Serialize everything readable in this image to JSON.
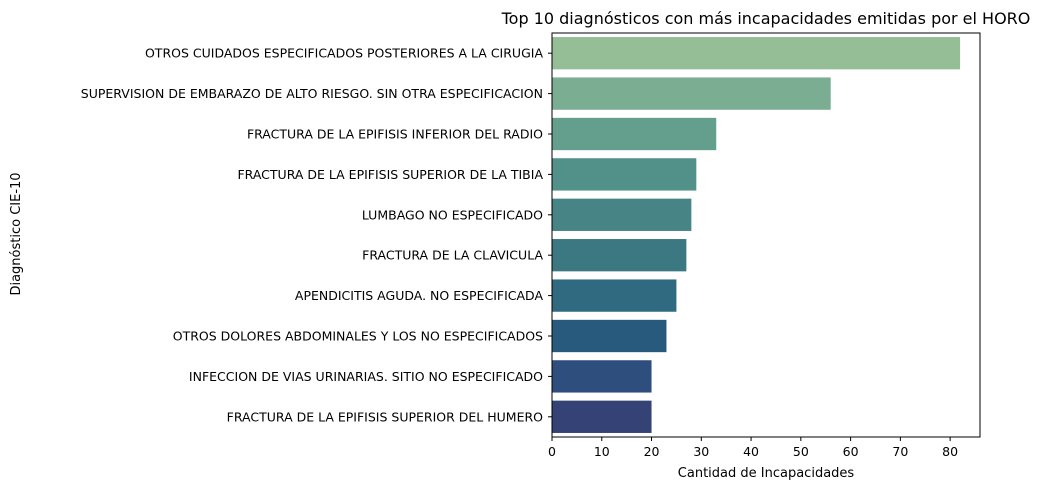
{
  "chart_data": {
    "type": "bar",
    "orientation": "horizontal",
    "title": "Top 10 diagnósticos con más incapacidades emitidas por el HORO",
    "xlabel": "Cantidad de Incapacidades",
    "ylabel": "Diagnóstico CIE-10",
    "xlim": [
      0,
      86
    ],
    "xticks": [
      "0",
      "10",
      "20",
      "30",
      "40",
      "50",
      "60",
      "70",
      "80"
    ],
    "grid": false,
    "legend": "none",
    "categories": [
      "OTROS CUIDADOS ESPECIFICADOS POSTERIORES A LA CIRUGIA",
      "SUPERVISION DE EMBARAZO DE ALTO RIESGO. SIN OTRA ESPECIFICACION",
      "FRACTURA DE LA EPIFISIS INFERIOR DEL RADIO",
      "FRACTURA DE LA EPIFISIS SUPERIOR DE LA TIBIA",
      "LUMBAGO NO ESPECIFICADO",
      "FRACTURA DE LA CLAVICULA",
      "APENDICITIS AGUDA. NO ESPECIFICADA",
      "OTROS DOLORES ABDOMINALES Y LOS NO ESPECIFICADOS",
      "INFECCION DE VIAS URINARIAS. SITIO NO ESPECIFICADO",
      "FRACTURA DE LA EPIFISIS SUPERIOR DEL HUMERO"
    ],
    "values": [
      82,
      56,
      33,
      29,
      28,
      27,
      25,
      23,
      20,
      20
    ],
    "colors": [
      "#95be97",
      "#7aad92",
      "#649f8d",
      "#52908a",
      "#468486",
      "#3b7882",
      "#2f6a80",
      "#285a7e",
      "#2e4f7e",
      "#354275"
    ]
  }
}
